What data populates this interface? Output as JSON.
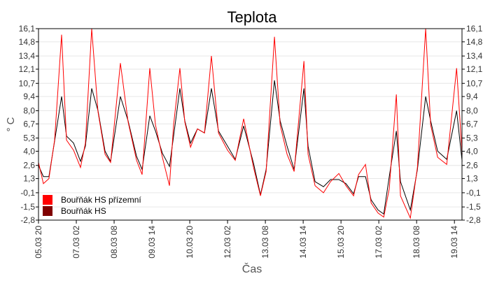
{
  "chart_data": {
    "type": "line",
    "title": "Teplota",
    "xlabel": "Čas",
    "ylabel": "° C",
    "x_unit": "hours since 05.03 20:00",
    "xlim": [
      0,
      336
    ],
    "ylim": [
      -2.8,
      16.1
    ],
    "grid": true,
    "legend_position": "bottom-left",
    "x_ticks": [
      {
        "x": 0,
        "label": "05.03 20"
      },
      {
        "x": 30,
        "label": "07.03 02"
      },
      {
        "x": 60,
        "label": "08.03 08"
      },
      {
        "x": 90,
        "label": "09.03 14"
      },
      {
        "x": 120,
        "label": "10.03 20"
      },
      {
        "x": 150,
        "label": "12.03 02"
      },
      {
        "x": 180,
        "label": "13.03 08"
      },
      {
        "x": 210,
        "label": "14.03 14"
      },
      {
        "x": 240,
        "label": "15.03 20"
      },
      {
        "x": 270,
        "label": "17.03 02"
      },
      {
        "x": 300,
        "label": "18.03 08"
      },
      {
        "x": 330,
        "label": "19.03 14"
      }
    ],
    "y_ticks": [
      {
        "y": 16.1,
        "label": "16,1"
      },
      {
        "y": 14.8,
        "label": "14,8"
      },
      {
        "y": 13.4,
        "label": "13,4"
      },
      {
        "y": 12.1,
        "label": "12,1"
      },
      {
        "y": 10.7,
        "label": "10,7"
      },
      {
        "y": 9.4,
        "label": "9,4"
      },
      {
        "y": 8.0,
        "label": "8,0"
      },
      {
        "y": 6.7,
        "label": "6,7"
      },
      {
        "y": 5.3,
        "label": "5,3"
      },
      {
        "y": 4.0,
        "label": "4,0"
      },
      {
        "y": 2.6,
        "label": "2,6"
      },
      {
        "y": 1.3,
        "label": "1,3"
      },
      {
        "y": -0.1,
        "label": "-0,1"
      },
      {
        "y": -1.5,
        "label": "-1,5"
      },
      {
        "y": -2.8,
        "label": "-2,8"
      }
    ],
    "x": [
      0,
      3.9,
      8.3,
      12.8,
      18.3,
      22.2,
      27.8,
      33.3,
      37.2,
      42.2,
      47.2,
      52.8,
      57.2,
      65,
      71.1,
      77.8,
      82.2,
      88.3,
      92.8,
      98.3,
      103.9,
      107.2,
      112.2,
      116.1,
      120.6,
      126.1,
      131.7,
      137.2,
      142.8,
      150,
      156.1,
      162.8,
      170.6,
      176.1,
      180.6,
      187.2,
      191.7,
      197.2,
      202.8,
      210.6,
      213.9,
      219.4,
      226.1,
      231.7,
      238.3,
      243.9,
      250,
      253.9,
      259.4,
      263.9,
      269.4,
      273.9,
      278.3,
      283.9,
      287.2,
      295,
      300.6,
      307.2,
      311.1,
      316.7,
      323.9,
      331.7,
      336.1
    ],
    "series": [
      {
        "name": "Bouřňák HS přízemní",
        "color": "#ff0000",
        "values": [
          2.9,
          0.8,
          1.3,
          5.1,
          15.5,
          5.1,
          4.1,
          2.4,
          4.8,
          16.1,
          7.9,
          3.7,
          2.9,
          12.7,
          6.9,
          3.1,
          1.7,
          12.2,
          6.6,
          3.4,
          0.6,
          6.6,
          12.2,
          6.9,
          4.4,
          6.2,
          5.8,
          13.4,
          5.8,
          4.1,
          3.1,
          7.2,
          2.4,
          -0.4,
          2.0,
          15.3,
          6.6,
          3.7,
          2.0,
          12.9,
          3.7,
          0.6,
          -0.1,
          1.0,
          1.8,
          0.6,
          -0.4,
          1.7,
          2.7,
          -1.1,
          -2.1,
          -2.5,
          0.3,
          9.6,
          -0.4,
          -2.6,
          2.4,
          16.1,
          6.6,
          3.4,
          2.7,
          12.2,
          3.7
        ]
      },
      {
        "name": "Bouřňák HS",
        "color": "#800000",
        "values": [
          2.6,
          1.5,
          1.5,
          5.0,
          9.4,
          5.5,
          4.8,
          3.0,
          4.5,
          10.2,
          8.0,
          4.0,
          3.0,
          9.4,
          7.0,
          3.5,
          2.2,
          7.5,
          6.0,
          3.8,
          2.5,
          5.5,
          10.2,
          7.0,
          4.8,
          6.2,
          5.8,
          10.2,
          6.0,
          4.5,
          3.2,
          6.5,
          2.8,
          -0.3,
          2.2,
          11.0,
          7.0,
          4.5,
          2.2,
          10.2,
          4.5,
          1.0,
          0.5,
          1.2,
          1.2,
          0.8,
          -0.2,
          1.5,
          1.5,
          -0.8,
          -1.8,
          -2.2,
          1.5,
          6.0,
          1.0,
          -1.8,
          2.2,
          9.4,
          7.0,
          4.0,
          3.2,
          8.0,
          3.0
        ]
      }
    ]
  }
}
